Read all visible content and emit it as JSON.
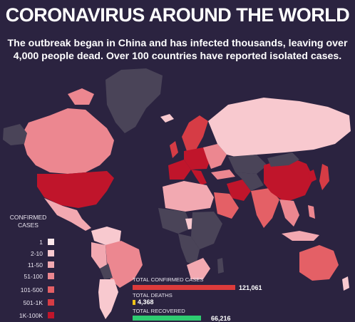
{
  "header": {
    "title": "CORONAVIRUS AROUND THE WORLD",
    "subtitle_line1": "The outbreak began in China and has infected thousands, leaving over",
    "subtitle_line2": "4,000 people dead. Over 100 countries have reported isolated cases."
  },
  "legend": {
    "title_line1": "CONFIRMED",
    "title_line2": "CASES",
    "items": [
      {
        "label": "1",
        "color": "#fbe7ea"
      },
      {
        "label": "2-10",
        "color": "#f8c9cf"
      },
      {
        "label": "11-50",
        "color": "#f2a9b1"
      },
      {
        "label": "51-100",
        "color": "#ec8790"
      },
      {
        "label": "101-500",
        "color": "#e46066"
      },
      {
        "label": "501-1K",
        "color": "#d63c45"
      },
      {
        "label": "1K-100K",
        "color": "#c0152b"
      }
    ]
  },
  "stats": {
    "confirmed": {
      "label": "TOTAL CONFIRMED CASES",
      "value": "121,061",
      "color": "#dc3b3b"
    },
    "deaths": {
      "label": "TOTAL DEATHS",
      "value": "4,368",
      "color": "#f0c419"
    },
    "recovered": {
      "label": "TOTAL RECOVERED",
      "value": "66,216",
      "color": "#2ecc71"
    }
  },
  "colors": {
    "background": "#2b2340",
    "no_cases": "#4a4458"
  }
}
